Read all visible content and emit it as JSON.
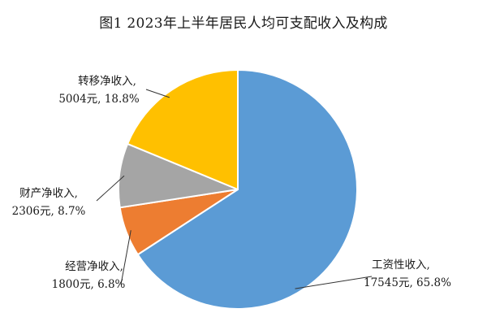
{
  "chart_data": {
    "type": "pie",
    "title": "图1  2023年上半年居民人均可支配收入及构成",
    "slices": [
      {
        "name": "工资性收入",
        "value": 17545,
        "unit": "元",
        "percent": "65.8%",
        "color": "#5B9BD5",
        "label_line1": "工资性收入,",
        "label_line2": "17545元, 65.8%"
      },
      {
        "name": "经营净收入",
        "value": 1800,
        "unit": "元",
        "percent": "6.8%",
        "color": "#ED7D31",
        "label_line1": "经营净收入,",
        "label_line2": "1800元, 6.8%"
      },
      {
        "name": "财产净收入",
        "value": 2306,
        "unit": "元",
        "percent": "8.7%",
        "color": "#A5A5A5",
        "label_line1": "财产净收入,",
        "label_line2": "2306元, 8.7%"
      },
      {
        "name": "转移净收入",
        "value": 5004,
        "unit": "元",
        "percent": "18.8%",
        "color": "#FFC000",
        "label_line1": "转移净收入,",
        "label_line2": "5004元, 18.8%"
      }
    ]
  }
}
